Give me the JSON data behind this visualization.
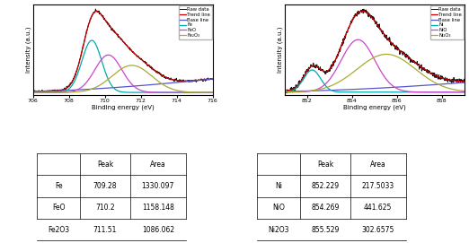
{
  "fe_xlim": [
    706,
    716
  ],
  "fe_xlabel": "Binding energy (eV)",
  "fe_ylabel": "Intensity (a.u.)",
  "fe_legend": [
    "Raw data",
    "Trend line",
    "Base line",
    "Fe",
    "FeO",
    "Fe₂O₃"
  ],
  "fe_colors": [
    "#111111",
    "#cc0000",
    "#5555cc",
    "#00aaaa",
    "#cc44cc",
    "#aaaa33"
  ],
  "fe_xticks": [
    706,
    708,
    710,
    712,
    714,
    716
  ],
  "ni_xlim": [
    851,
    859
  ],
  "ni_xlabel": "Binding energy (eV)",
  "ni_ylabel": "Intensity (a.u.)",
  "ni_legend": [
    "Raw data",
    "Trend line",
    "Base line",
    "Ni",
    "NiO",
    "Ni₂O₃"
  ],
  "ni_colors": [
    "#111111",
    "#cc0000",
    "#5555cc",
    "#00aaaa",
    "#cc44cc",
    "#aaaa33"
  ],
  "ni_xticks": [
    852,
    854,
    856,
    858
  ],
  "table_left_headers": [
    "",
    "Peak",
    "Area"
  ],
  "table_left_rows": [
    [
      "Fe",
      "709.28",
      "1330.097"
    ],
    [
      "FeO",
      "710.2",
      "1158.148"
    ],
    [
      "Fe2O3",
      "711.51",
      "1086.062"
    ]
  ],
  "table_right_headers": [
    "",
    "Peak",
    "Area"
  ],
  "table_right_rows": [
    [
      "Ni",
      "852.229",
      "217.5033"
    ],
    [
      "NiO",
      "854.269",
      "441.625"
    ],
    [
      "Ni2O3",
      "855.529",
      "302.6575"
    ]
  ]
}
